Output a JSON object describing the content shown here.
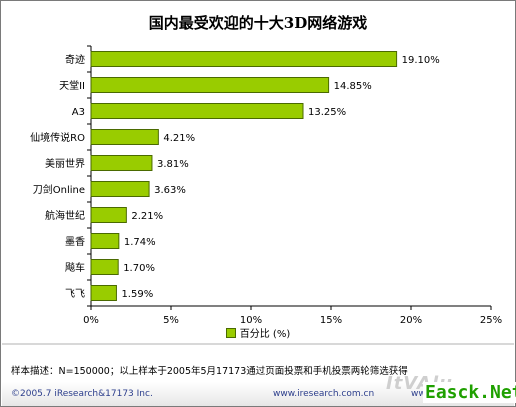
{
  "chart_data": {
    "type": "bar",
    "orientation": "horizontal",
    "title": "国内最受欢迎的十大3D网络游戏",
    "categories": [
      "奇迹",
      "天堂II",
      "A3",
      "仙境传说RO",
      "美丽世界",
      "刀剑Online",
      "航海世纪",
      "墨香",
      "飚车",
      "飞飞"
    ],
    "series": [
      {
        "name": "百分比 (%)",
        "values": [
          19.1,
          14.85,
          13.25,
          4.21,
          3.81,
          3.63,
          2.21,
          1.74,
          1.7,
          1.59
        ]
      }
    ],
    "value_labels": [
      "19.10%",
      "14.85%",
      "13.25%",
      "4.21%",
      "3.81%",
      "3.63%",
      "2.21%",
      "1.74%",
      "1.70%",
      "1.59%"
    ],
    "xlim": [
      0,
      25
    ],
    "x_ticks": [
      0,
      5,
      10,
      15,
      20,
      25
    ],
    "x_tick_labels": [
      "0%",
      "5%",
      "10%",
      "15%",
      "20%",
      "25%"
    ],
    "legend_position": "bottom",
    "grid": false,
    "bar_color": "#99cc00",
    "bar_edge_color": "#4a6a00"
  },
  "legend_label": "百分比 (%)",
  "footnote": "样本描述：N=150000；以上样本于2005年5月17173通过页面投票和手机投票两轮筛选获得",
  "copyright": "©2005.7 iResearch&17173 Inc.",
  "website": "www.iresearch.com.cn",
  "website2": "www.",
  "watermark_faint": "ItVAlu",
  "watermark": "Easck.Net"
}
